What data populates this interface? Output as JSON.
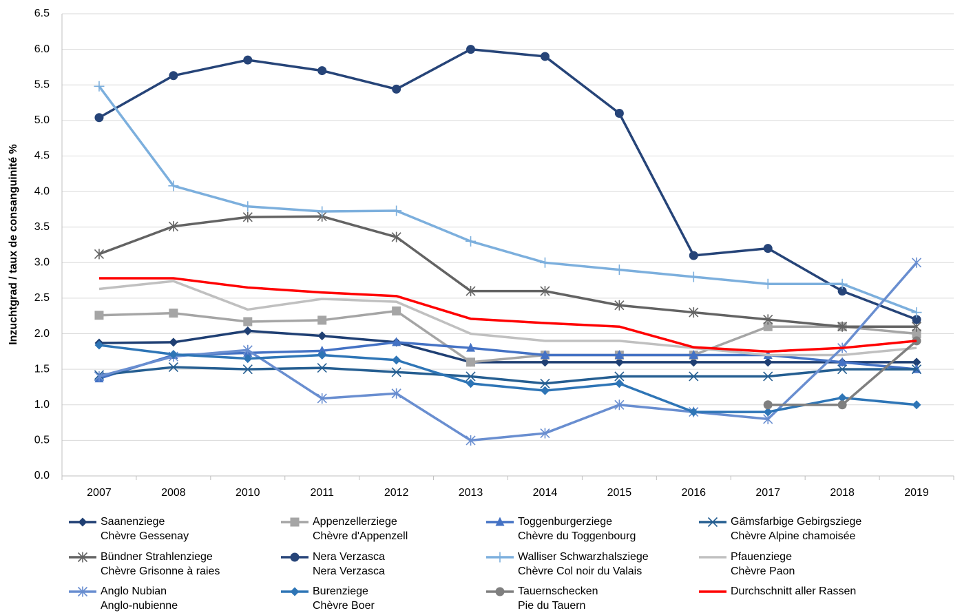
{
  "chart_data": {
    "type": "line",
    "y_label": "Inzuchtgrad / taux de consanguinité %",
    "categories": [
      "2007",
      "2008",
      "2010",
      "2011",
      "2012",
      "2013",
      "2014",
      "2015",
      "2016",
      "2017",
      "2018",
      "2019"
    ],
    "ylim": [
      0,
      6.5
    ],
    "yticks": [
      {
        "value": 0,
        "label": "0.0"
      },
      0.5,
      {
        "value": 1,
        "label": "1.0"
      },
      1.5,
      {
        "value": 2,
        "label": "2.0"
      },
      2.5,
      {
        "value": 3,
        "label": "3.0"
      },
      3.5,
      {
        "value": 4,
        "label": "4.0"
      },
      4.5,
      {
        "value": 5,
        "label": "5.0"
      },
      5.5,
      {
        "value": 6,
        "label": "6.0"
      },
      6.5
    ],
    "grid": true,
    "legend": "bottom",
    "series": [
      {
        "name": "Saanenziege\nChèvre Gessenay",
        "color": "#1f3f73",
        "marker": "diamond",
        "values": [
          1.87,
          1.88,
          2.04,
          1.97,
          1.88,
          1.6,
          1.6,
          1.6,
          1.6,
          1.6,
          1.6,
          1.6
        ]
      },
      {
        "name": "Appenzellerziege\nChèvre d'Appenzell",
        "color": "#a5a5a5",
        "marker": "square",
        "values": [
          2.26,
          2.29,
          2.17,
          2.19,
          2.32,
          1.6,
          1.7,
          1.7,
          1.7,
          2.1,
          2.1,
          2.0
        ]
      },
      {
        "name": "Toggenburgerziege\nChèvre du Toggenbourg",
        "color": "#4472c4",
        "marker": "triangle",
        "values": [
          1.37,
          1.7,
          1.73,
          1.76,
          1.88,
          1.8,
          1.7,
          1.7,
          1.7,
          1.7,
          1.6,
          1.5
        ]
      },
      {
        "name": "Gämsfarbige Gebirgsziege\nChèvre Alpine chamoisée",
        "color": "#255e91",
        "marker": "x",
        "values": [
          1.42,
          1.53,
          1.5,
          1.52,
          1.46,
          1.4,
          1.3,
          1.4,
          1.4,
          1.4,
          1.5,
          1.5
        ]
      },
      {
        "name": "Bündner Strahlenziege\nChèvre Grisonne à raies",
        "color": "#636363",
        "marker": "star",
        "values": [
          3.12,
          3.51,
          3.64,
          3.65,
          3.36,
          2.6,
          2.6,
          2.4,
          2.3,
          2.2,
          2.1,
          2.1
        ]
      },
      {
        "name": "Nera Verzasca\nNera Verzasca",
        "color": "#264478",
        "marker": "circle",
        "values": [
          5.04,
          5.63,
          5.85,
          5.7,
          5.44,
          6.0,
          5.9,
          5.1,
          3.1,
          3.2,
          2.6,
          2.2
        ]
      },
      {
        "name": "Walliser Schwarzhalsziege\nChèvre Col noir du Valais",
        "color": "#7cafdd",
        "marker": "plus",
        "values": [
          5.48,
          4.08,
          3.79,
          3.72,
          3.73,
          3.3,
          3.0,
          2.9,
          2.8,
          2.7,
          2.7,
          2.3
        ]
      },
      {
        "name": "Pfauenziege\nChèvre Paon",
        "color": "#c0c0c0",
        "marker": "none",
        "values": [
          2.63,
          2.74,
          2.34,
          2.49,
          2.45,
          2.0,
          1.9,
          1.9,
          1.8,
          1.7,
          1.7,
          1.8
        ]
      },
      {
        "name": "Anglo Nubian\nAnglo-nubienne",
        "color": "#698ed0",
        "marker": "star",
        "values": [
          1.4,
          1.68,
          1.77,
          1.09,
          1.16,
          0.5,
          0.6,
          1.0,
          0.9,
          0.8,
          1.8,
          3.0
        ]
      },
      {
        "name": "Burenziege\nChèvre Boer",
        "color": "#2e75b6",
        "marker": "diamond",
        "values": [
          1.84,
          1.71,
          1.65,
          1.7,
          1.63,
          1.3,
          1.2,
          1.3,
          0.9,
          0.9,
          1.1,
          1.0
        ]
      },
      {
        "name": "Tauernschecken\nPie du Tauern",
        "color": "#7f7f7f",
        "marker": "circle",
        "values": [
          null,
          null,
          null,
          null,
          null,
          null,
          null,
          null,
          null,
          1.0,
          1.0,
          1.9
        ]
      },
      {
        "name": "Durchschnitt aller Rassen",
        "color": "#ff0000",
        "marker": "none",
        "values": [
          2.78,
          2.78,
          2.65,
          2.58,
          2.53,
          2.21,
          2.15,
          2.1,
          1.81,
          1.75,
          1.8,
          1.9
        ]
      }
    ]
  }
}
